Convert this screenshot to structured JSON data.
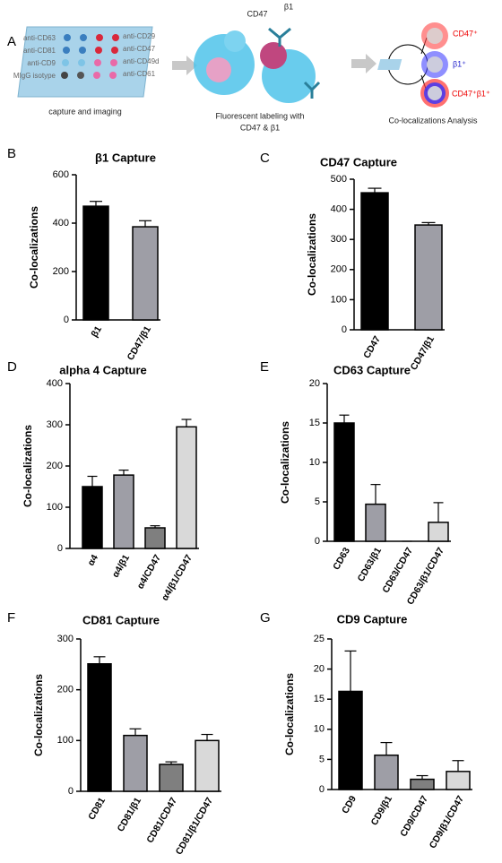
{
  "diagram": {
    "panel": "A",
    "left_labels": [
      "anti-CD63",
      "anti-CD81",
      "anti-CD9",
      "MIgG isotype"
    ],
    "right_labels": [
      "anti-CD29",
      "anti-CD47",
      "anti-CD49d",
      "anti-CD61"
    ],
    "step1": "capture and imaging",
    "antibody_labels": [
      "CD47",
      "β1"
    ],
    "step2": [
      "Fluorescent labeling with",
      "CD47 & β1"
    ],
    "result_labels": [
      "CD47⁺",
      "β1⁺",
      "CD47⁺β1⁺"
    ],
    "step3": "Co-localizations Analysis"
  },
  "chart_data": [
    {
      "type": "bar",
      "panel": "B",
      "title": "β1 Capture",
      "y_label": "Co-localizations",
      "categories": [
        "β1",
        "CD47/β1"
      ],
      "values": [
        470,
        385
      ],
      "errors": [
        20,
        25
      ],
      "colors": [
        "#000000",
        "#9e9ea6"
      ],
      "ylim": [
        0,
        600
      ],
      "yticks": [
        0,
        200,
        400,
        600
      ]
    },
    {
      "type": "bar",
      "panel": "C",
      "title": "CD47 Capture",
      "y_label": "Co-localizations",
      "categories": [
        "CD47",
        "CD47/β1"
      ],
      "values": [
        455,
        348
      ],
      "errors": [
        15,
        8
      ],
      "colors": [
        "#000000",
        "#9e9ea6"
      ],
      "ylim": [
        0,
        500
      ],
      "yticks": [
        0,
        100,
        200,
        300,
        400,
        500
      ]
    },
    {
      "type": "bar",
      "panel": "D",
      "title": "alpha 4 Capture",
      "y_label": "Co-localizations",
      "categories": [
        "α4",
        "α4/β1",
        "α4/CD47",
        "α4/β1/CD47"
      ],
      "values": [
        150,
        178,
        50,
        295
      ],
      "errors": [
        25,
        12,
        5,
        18
      ],
      "colors": [
        "#000000",
        "#9e9ea6",
        "#7f7f7f",
        "#d9d9d9"
      ],
      "ylim": [
        0,
        400
      ],
      "yticks": [
        0,
        100,
        200,
        300,
        400
      ]
    },
    {
      "type": "bar",
      "panel": "E",
      "title": "CD63 Capture",
      "y_label": "Co-localizations",
      "categories": [
        "CD63",
        "CD63/β1",
        "CD63/CD47",
        "CD63/β1/CD47"
      ],
      "values": [
        15,
        4.7,
        0,
        2.4
      ],
      "errors": [
        1,
        2.5,
        0,
        2.5
      ],
      "colors": [
        "#000000",
        "#9e9ea6",
        "#7f7f7f",
        "#d9d9d9"
      ],
      "ylim": [
        0,
        20
      ],
      "yticks": [
        0,
        5,
        10,
        15,
        20
      ]
    },
    {
      "type": "bar",
      "panel": "F",
      "title": "CD81 Capture",
      "y_label": "Co-localizations",
      "categories": [
        "CD81",
        "CD81/β1",
        "CD81/CD47",
        "CD81/β1/CD47"
      ],
      "values": [
        251,
        110,
        53,
        100
      ],
      "errors": [
        14,
        13,
        5,
        12
      ],
      "colors": [
        "#000000",
        "#9e9ea6",
        "#7f7f7f",
        "#d9d9d9"
      ],
      "ylim": [
        0,
        300
      ],
      "yticks": [
        0,
        100,
        200,
        300
      ]
    },
    {
      "type": "bar",
      "panel": "G",
      "title": "CD9 Capture",
      "y_label": "Co-localizations",
      "categories": [
        "CD9",
        "CD9/β1",
        "CD9/CD47",
        "CD9/β1/CD47"
      ],
      "values": [
        16.3,
        5.7,
        1.7,
        3.0
      ],
      "errors": [
        6.7,
        2.1,
        0.6,
        1.8
      ],
      "colors": [
        "#000000",
        "#9e9ea6",
        "#7f7f7f",
        "#d9d9d9"
      ],
      "ylim": [
        0,
        25
      ],
      "yticks": [
        0,
        5,
        10,
        15,
        20,
        25
      ]
    }
  ]
}
